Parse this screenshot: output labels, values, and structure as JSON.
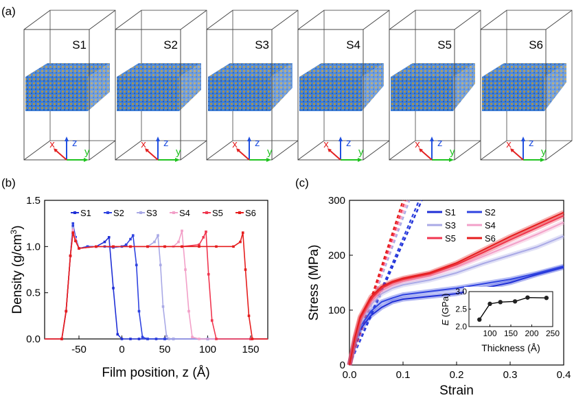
{
  "panels": {
    "a_label": "(a)",
    "b_label": "(b)",
    "c_label": "(c)"
  },
  "sim_boxes": [
    {
      "name": "S1",
      "axes": {
        "x": "x",
        "y": "y",
        "z": "z"
      }
    },
    {
      "name": "S2",
      "axes": {
        "x": "x",
        "y": "y",
        "z": "z"
      }
    },
    {
      "name": "S3",
      "axes": {
        "x": "x",
        "y": "y",
        "z": "z"
      }
    },
    {
      "name": "S4",
      "axes": {
        "x": "x",
        "y": "y",
        "z": "z"
      }
    },
    {
      "name": "S5",
      "axes": {
        "x": "x",
        "y": "y",
        "z": "z"
      }
    },
    {
      "name": "S6",
      "axes": {
        "x": "x",
        "y": "y",
        "z": "z"
      }
    }
  ],
  "colors": {
    "S1": "#1f2fd6",
    "S2": "#2f43e0",
    "S3": "#a9a9e6",
    "S4": "#f2a0c8",
    "S5": "#f0364f",
    "S6": "#e51d1d",
    "axis_x": "#e32020",
    "axis_y": "#1fc21f",
    "axis_z": "#1f4fe0",
    "film_a": "#3f7fd6",
    "film_b": "#c89b2a"
  },
  "chart_data": [
    {
      "type": "line",
      "panel": "(b)",
      "xlabel": "Film position, z (Å)",
      "ylabel": "Density (g/cm³)",
      "ylabel_main": "Density (g/cm",
      "ylabel_sup": "3",
      "ylabel_end": ")",
      "xlim": [
        -90,
        170
      ],
      "ylim": [
        0,
        1.5
      ],
      "xticks": [
        -50,
        0,
        50,
        100,
        150
      ],
      "xtick_labels": [
        "-50",
        "0",
        "50",
        "100",
        "150"
      ],
      "yticks": [
        0.0,
        0.5,
        1.0,
        1.5
      ],
      "ytick_labels": [
        "0.0",
        "0.5",
        "1.0",
        "1.5"
      ],
      "legend": [
        "S1",
        "S2",
        "S3",
        "S4",
        "S5",
        "S6"
      ],
      "series": [
        {
          "name": "S1",
          "x": [
            -90,
            -70,
            -65,
            -60,
            -57,
            -54,
            -50,
            -40,
            -30,
            -20,
            -15,
            -10,
            -5,
            0,
            10,
            20,
            30,
            40,
            50,
            60,
            100,
            150,
            170
          ],
          "y": [
            0,
            0,
            0.3,
            0.9,
            1.22,
            1.1,
            0.98,
            1.0,
            1.0,
            1.05,
            1.1,
            0.55,
            0.05,
            0,
            0,
            0,
            0,
            0,
            0,
            0,
            0,
            0,
            0
          ]
        },
        {
          "name": "S2",
          "x": [
            -90,
            -70,
            -65,
            -60,
            -57,
            -54,
            -50,
            -40,
            -30,
            -20,
            -10,
            0,
            5,
            10,
            13,
            17,
            20,
            24,
            30,
            50,
            100,
            150,
            170
          ],
          "y": [
            0,
            0,
            0.3,
            0.9,
            1.25,
            1.1,
            0.98,
            1.0,
            1.0,
            1.0,
            0.99,
            1.0,
            1.02,
            1.08,
            1.12,
            0.8,
            0.3,
            0.02,
            0,
            0,
            0,
            0,
            0
          ]
        },
        {
          "name": "S3",
          "x": [
            -90,
            -70,
            -65,
            -60,
            -57,
            -54,
            -50,
            -30,
            -10,
            10,
            30,
            38,
            42,
            45,
            48,
            52,
            55,
            60,
            100,
            150,
            170
          ],
          "y": [
            0,
            0,
            0.3,
            0.9,
            1.2,
            1.08,
            0.98,
            1.0,
            1.0,
            1.0,
            1.0,
            1.05,
            1.12,
            0.8,
            0.35,
            0.03,
            0,
            0,
            0,
            0,
            0
          ]
        },
        {
          "name": "S4",
          "x": [
            -90,
            -70,
            -65,
            -60,
            -57,
            -54,
            -50,
            -30,
            -10,
            10,
            30,
            50,
            60,
            66,
            70,
            74,
            78,
            82,
            90,
            150,
            170
          ],
          "y": [
            0,
            0,
            0.3,
            0.9,
            1.18,
            1.08,
            0.98,
            1.0,
            1.0,
            1.0,
            1.0,
            1.0,
            1.0,
            1.05,
            1.17,
            0.75,
            0.3,
            0.02,
            0,
            0,
            0
          ]
        },
        {
          "name": "S5",
          "x": [
            -90,
            -70,
            -65,
            -60,
            -57,
            -54,
            -50,
            -30,
            -10,
            10,
            30,
            50,
            70,
            90,
            95,
            98,
            101,
            105,
            110,
            150,
            170
          ],
          "y": [
            0,
            0,
            0.3,
            0.9,
            1.15,
            1.06,
            0.98,
            1.0,
            1.0,
            1.0,
            1.0,
            1.0,
            1.0,
            1.02,
            1.1,
            1.16,
            0.7,
            0.2,
            0,
            0,
            0
          ]
        },
        {
          "name": "S6",
          "x": [
            -90,
            -70,
            -65,
            -60,
            -57,
            -54,
            -50,
            -30,
            -10,
            10,
            30,
            50,
            70,
            90,
            110,
            130,
            138,
            141,
            144,
            148,
            152,
            170
          ],
          "y": [
            0,
            0,
            0.3,
            0.9,
            1.15,
            1.06,
            0.98,
            1.0,
            1.0,
            1.0,
            1.0,
            1.0,
            1.0,
            1.0,
            1.0,
            1.0,
            1.05,
            1.15,
            0.75,
            0.25,
            0,
            0
          ]
        }
      ]
    },
    {
      "type": "line",
      "panel": "(c)",
      "xlabel": "Strain",
      "ylabel": "Stress (MPa)",
      "xlim": [
        0,
        0.4
      ],
      "ylim": [
        0,
        300
      ],
      "xticks": [
        0.0,
        0.1,
        0.2,
        0.3,
        0.4
      ],
      "xtick_labels": [
        "0.0",
        "0.1",
        "0.2",
        "0.3",
        "0.4"
      ],
      "yticks": [
        0,
        100,
        200,
        300
      ],
      "ytick_labels": [
        "0",
        "100",
        "200",
        "300"
      ],
      "legend": [
        "S1",
        "S2",
        "S3",
        "S4",
        "S5",
        "S6"
      ],
      "series": [
        {
          "name": "S1",
          "x": [
            0,
            0.01,
            0.02,
            0.04,
            0.06,
            0.08,
            0.1,
            0.15,
            0.2,
            0.25,
            0.3,
            0.35,
            0.4
          ],
          "y": [
            0,
            40,
            65,
            90,
            105,
            115,
            120,
            125,
            130,
            140,
            150,
            165,
            178
          ]
        },
        {
          "name": "S2",
          "x": [
            0,
            0.01,
            0.02,
            0.04,
            0.06,
            0.08,
            0.1,
            0.15,
            0.2,
            0.25,
            0.3,
            0.35,
            0.4
          ],
          "y": [
            0,
            42,
            70,
            98,
            115,
            122,
            128,
            134,
            140,
            148,
            156,
            167,
            180
          ]
        },
        {
          "name": "S3",
          "x": [
            0,
            0.01,
            0.02,
            0.04,
            0.06,
            0.08,
            0.1,
            0.15,
            0.2,
            0.25,
            0.3,
            0.35,
            0.4
          ],
          "y": [
            0,
            45,
            78,
            110,
            130,
            140,
            146,
            155,
            168,
            185,
            200,
            215,
            235
          ]
        },
        {
          "name": "S4",
          "x": [
            0,
            0.01,
            0.02,
            0.04,
            0.06,
            0.08,
            0.1,
            0.15,
            0.2,
            0.25,
            0.3,
            0.35,
            0.4
          ],
          "y": [
            0,
            46,
            82,
            115,
            135,
            145,
            152,
            162,
            178,
            198,
            218,
            238,
            260
          ]
        },
        {
          "name": "S5",
          "x": [
            0,
            0.01,
            0.02,
            0.04,
            0.06,
            0.08,
            0.1,
            0.15,
            0.2,
            0.25,
            0.3,
            0.35,
            0.4
          ],
          "y": [
            0,
            48,
            85,
            120,
            140,
            150,
            156,
            166,
            183,
            205,
            228,
            250,
            272
          ]
        },
        {
          "name": "S6",
          "x": [
            0,
            0.01,
            0.02,
            0.04,
            0.06,
            0.08,
            0.1,
            0.15,
            0.2,
            0.25,
            0.3,
            0.35,
            0.4
          ],
          "y": [
            0,
            50,
            88,
            124,
            143,
            152,
            158,
            168,
            186,
            210,
            234,
            256,
            278
          ]
        }
      ],
      "dashed_fits": [
        {
          "name": "S1",
          "x": [
            0,
            0.135
          ],
          "y": [
            0,
            300
          ]
        },
        {
          "name": "S2",
          "x": [
            0,
            0.13
          ],
          "y": [
            0,
            300
          ]
        },
        {
          "name": "S3",
          "x": [
            0,
            0.112
          ],
          "y": [
            0,
            300
          ]
        },
        {
          "name": "S4",
          "x": [
            0,
            0.108
          ],
          "y": [
            0,
            300
          ]
        },
        {
          "name": "S5",
          "x": [
            0,
            0.104
          ],
          "y": [
            0,
            300
          ]
        },
        {
          "name": "S6",
          "x": [
            0,
            0.1
          ],
          "y": [
            0,
            300
          ]
        }
      ],
      "inset": {
        "xlabel": "Thickness (Å)",
        "ylabel": "E (GPa)",
        "ylabel_italic": "E",
        "ylabel_rest": " (GPa)",
        "xlim": [
          50,
          250
        ],
        "ylim": [
          2.0,
          3.0
        ],
        "xticks": [
          100,
          150,
          200,
          250
        ],
        "xtick_labels": [
          "100",
          "150",
          "200",
          "250"
        ],
        "yticks": [
          2.0,
          2.5,
          3.0
        ],
        "ytick_labels": [
          "2.0",
          "2.5",
          "3.0"
        ],
        "x": [
          75,
          100,
          125,
          160,
          190,
          235
        ],
        "y": [
          2.2,
          2.65,
          2.7,
          2.72,
          2.83,
          2.82
        ]
      }
    }
  ]
}
